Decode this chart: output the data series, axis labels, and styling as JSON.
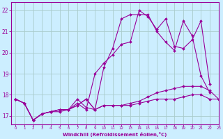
{
  "bg_color": "#cceeff",
  "grid_color": "#aacccc",
  "line_color": "#990099",
  "xlabel": "Windchill (Refroidissement éolien,°C)",
  "xlim": [
    -0.5,
    23
  ],
  "ylim": [
    16.6,
    22.4
  ],
  "xticks": [
    0,
    1,
    2,
    3,
    4,
    5,
    6,
    7,
    8,
    9,
    10,
    11,
    12,
    13,
    14,
    15,
    16,
    17,
    18,
    19,
    20,
    21,
    22,
    23
  ],
  "yticks": [
    17,
    18,
    19,
    20,
    21,
    22
  ],
  "series": [
    {
      "x": [
        0,
        1,
        2,
        3,
        4,
        5,
        6,
        7,
        8,
        9,
        10,
        11,
        12,
        13,
        14,
        15,
        16,
        17,
        18,
        19,
        20,
        21,
        22,
        23
      ],
      "y": [
        17.8,
        17.6,
        16.8,
        17.1,
        17.2,
        17.3,
        17.3,
        17.5,
        17.8,
        17.3,
        17.5,
        17.5,
        17.5,
        17.5,
        17.6,
        17.7,
        17.8,
        17.8,
        17.8,
        17.9,
        18.0,
        18.0,
        17.8,
        17.8
      ]
    },
    {
      "x": [
        0,
        1,
        2,
        3,
        4,
        5,
        6,
        7,
        8,
        9,
        10,
        11,
        12,
        13,
        14,
        15,
        16,
        17,
        18,
        19,
        20,
        21,
        22,
        23
      ],
      "y": [
        17.8,
        17.6,
        16.8,
        17.1,
        17.2,
        17.2,
        17.3,
        17.5,
        17.8,
        17.3,
        17.5,
        17.5,
        17.5,
        17.6,
        17.7,
        17.9,
        18.1,
        18.2,
        18.3,
        18.4,
        18.4,
        18.4,
        18.2,
        17.8
      ]
    },
    {
      "x": [
        0,
        1,
        2,
        3,
        4,
        5,
        6,
        7,
        8,
        9,
        10,
        11,
        12,
        13,
        14,
        15,
        16,
        17,
        18,
        19,
        20,
        21,
        22
      ],
      "y": [
        17.8,
        17.6,
        16.8,
        17.1,
        17.2,
        17.3,
        17.3,
        17.8,
        17.4,
        17.3,
        19.3,
        20.2,
        21.6,
        21.8,
        21.8,
        21.8,
        21.0,
        20.5,
        20.1,
        21.5,
        20.8,
        18.9,
        18.1
      ]
    },
    {
      "x": [
        0,
        1,
        2,
        3,
        4,
        5,
        6,
        7,
        8,
        9,
        10,
        11,
        12,
        13,
        14,
        15,
        16,
        17,
        18,
        19,
        20,
        21,
        22
      ],
      "y": [
        17.8,
        17.6,
        16.8,
        17.1,
        17.2,
        17.3,
        17.3,
        17.6,
        17.3,
        19.0,
        19.5,
        19.9,
        20.4,
        20.5,
        22.0,
        21.7,
        21.1,
        21.6,
        20.3,
        20.2,
        20.6,
        21.5,
        18.5
      ]
    }
  ]
}
